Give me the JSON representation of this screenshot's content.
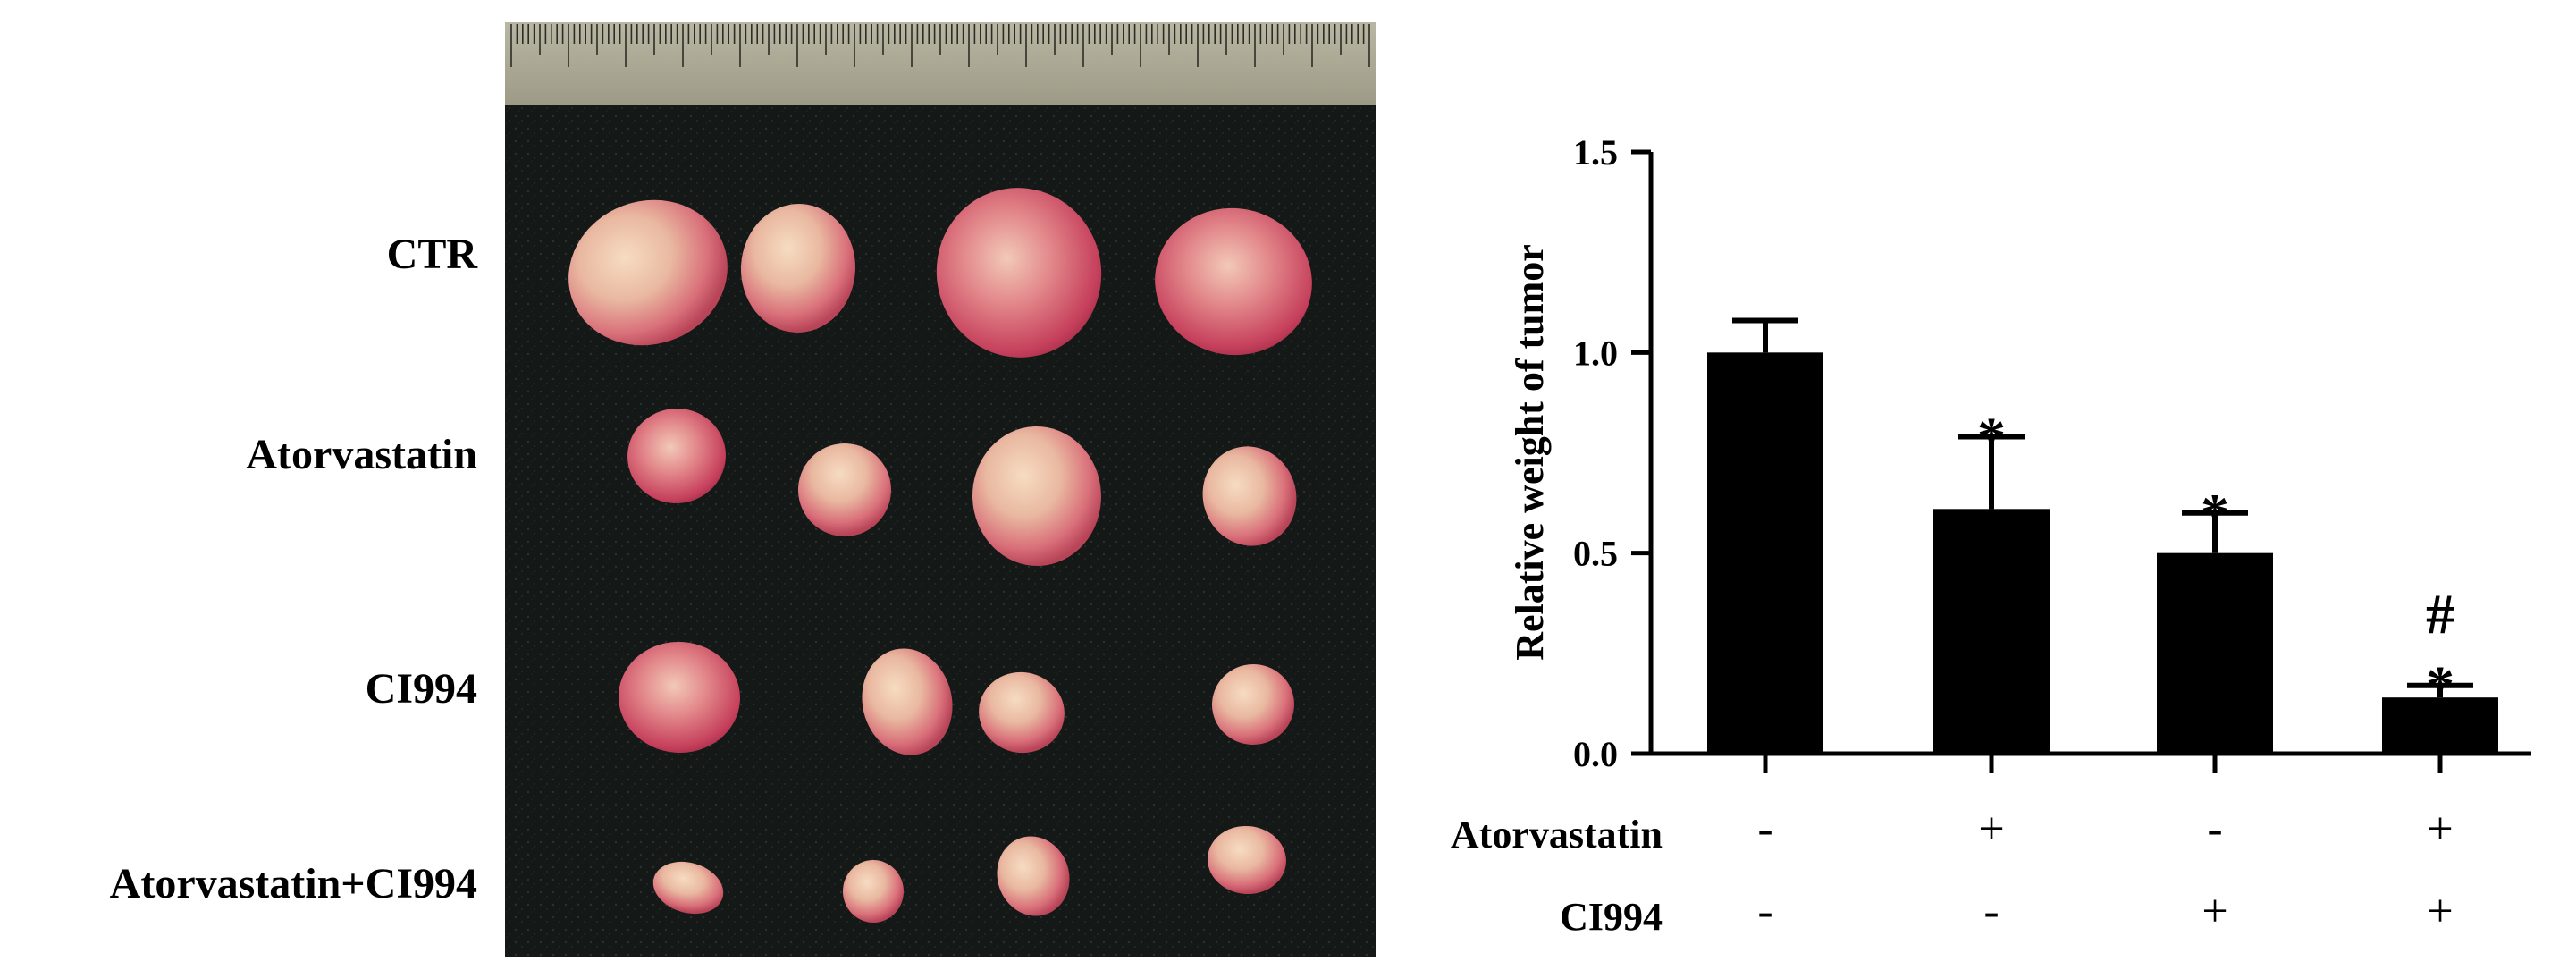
{
  "photo": {
    "row_labels": [
      "CTR",
      "Atorvastatin",
      "CI994",
      "Atorvastatin+CI994"
    ],
    "tumors_per_row": 4
  },
  "chart_data": {
    "type": "bar",
    "title": "",
    "xlabel": "",
    "ylabel": "Relative weight of tumor",
    "ylim": [
      0.0,
      1.5
    ],
    "yticks": [
      "0.0",
      "0.5",
      "1.0",
      "1.5"
    ],
    "ytick_values": [
      0.0,
      0.5,
      1.0,
      1.5
    ],
    "grid": false,
    "legend": "none",
    "bar_color": "#000000",
    "categories": [
      "CTR",
      "Atorvastatin",
      "CI994",
      "Atorvastatin+CI994"
    ],
    "values": [
      1.0,
      0.61,
      0.5,
      0.14
    ],
    "error": [
      0.08,
      0.18,
      0.1,
      0.03
    ],
    "significance": [
      [],
      [
        "*"
      ],
      [
        "*"
      ],
      [
        "#",
        "*"
      ]
    ],
    "condition_rows": [
      {
        "label": "Atorvastatin",
        "signs": [
          "-",
          "+",
          "-",
          "+"
        ]
      },
      {
        "label": "CI994",
        "signs": [
          "-",
          "-",
          "+",
          "+"
        ]
      }
    ]
  }
}
